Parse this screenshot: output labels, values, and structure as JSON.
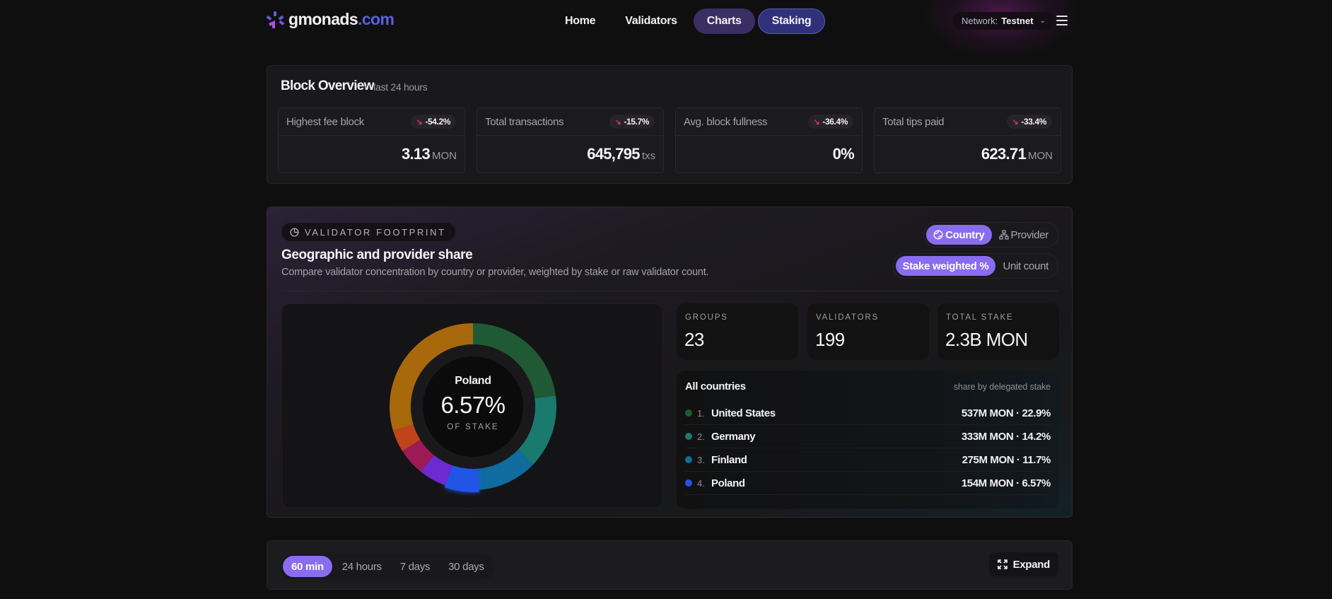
{
  "header": {
    "logo_text": "gmonads",
    "logo_tld": ".com",
    "nav": [
      {
        "label": "Home"
      },
      {
        "label": "Validators"
      },
      {
        "label": "Charts"
      },
      {
        "label": "Staking"
      }
    ],
    "network_label": "Network:",
    "network_value": "Testnet"
  },
  "block_overview": {
    "title": "Block Overview",
    "subtitle": "last 24 hours",
    "stats": [
      {
        "label": "Highest fee block",
        "change": "-54.2%",
        "value": "3.13",
        "unit": "MON"
      },
      {
        "label": "Total transactions",
        "change": "-15.7%",
        "value": "645,795",
        "unit": "txs"
      },
      {
        "label": "Avg. block fullness",
        "change": "-36.4%",
        "value": "0%",
        "unit": ""
      },
      {
        "label": "Total tips paid",
        "change": "-33.4%",
        "value": "623.71",
        "unit": "MON"
      }
    ]
  },
  "footprint": {
    "badge": "VALIDATOR FOOTPRINT",
    "title": "Geographic and provider share",
    "description": "Compare validator concentration by country or provider, weighted by stake or raw validator count.",
    "group_toggle": [
      {
        "label": "Country",
        "active": true
      },
      {
        "label": "Provider",
        "active": false
      }
    ],
    "metric_toggle": [
      {
        "label": "Stake weighted %",
        "active": true
      },
      {
        "label": "Unit count",
        "active": false
      }
    ],
    "selected": {
      "name": "Poland",
      "percent": "6.57%",
      "caption": "OF STAKE"
    },
    "kpis": [
      {
        "label": "GROUPS",
        "value": "23"
      },
      {
        "label": "VALIDATORS",
        "value": "199"
      },
      {
        "label": "TOTAL STAKE",
        "value": "2.3B MON"
      }
    ],
    "list_title": "All countries",
    "list_note": "share by delegated stake",
    "list": [
      {
        "rank": "1.",
        "name": "United States",
        "amount": "537M MON · 22.9%",
        "color": "#1f5a35"
      },
      {
        "rank": "2.",
        "name": "Germany",
        "amount": "333M MON · 14.2%",
        "color": "#1b7a6e"
      },
      {
        "rank": "3.",
        "name": "Finland",
        "amount": "275M MON · 11.7%",
        "color": "#0f6c9e"
      },
      {
        "rank": "4.",
        "name": "Poland",
        "amount": "154M MON · 6.57%",
        "color": "#2454e6"
      }
    ]
  },
  "chart_data": {
    "type": "pie",
    "title": "Geographic and provider share",
    "subtitle": "share by delegated stake",
    "slices": [
      {
        "label": "United States",
        "value": 22.9,
        "color": "#1f5a35"
      },
      {
        "label": "Germany",
        "value": 14.2,
        "color": "#1b7a6e"
      },
      {
        "label": "Finland",
        "value": 11.7,
        "color": "#0f6c9e"
      },
      {
        "label": "Poland",
        "value": 6.57,
        "color": "#2454e6",
        "highlighted": true
      },
      {
        "label": "(unlabeled)",
        "value": 5.4,
        "color": "#6b2bd1"
      },
      {
        "label": "(unlabeled)",
        "value": 5.3,
        "color": "#9c1a55"
      },
      {
        "label": "(unlabeled)",
        "value": 4.3,
        "color": "#c0441a"
      },
      {
        "label": "(unlabeled)",
        "value": 29.63,
        "color": "#a8680c"
      }
    ]
  },
  "time_range": {
    "options": [
      {
        "label": "60 min",
        "active": true
      },
      {
        "label": "24 hours",
        "active": false
      },
      {
        "label": "7 days",
        "active": false
      },
      {
        "label": "30 days",
        "active": false
      }
    ],
    "expand_label": "Expand"
  }
}
